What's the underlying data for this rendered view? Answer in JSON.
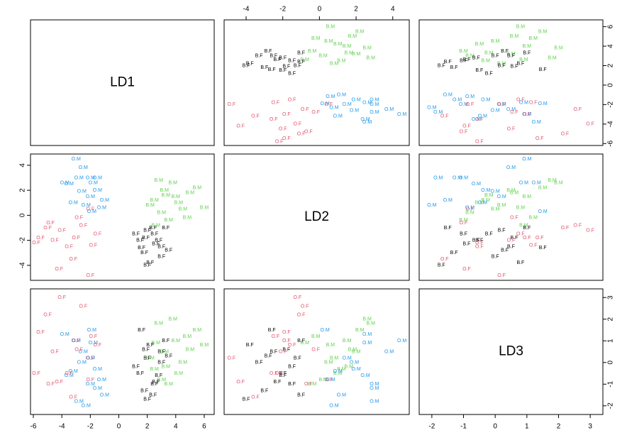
{
  "chart_data": {
    "type": "pairs",
    "axes": [
      {
        "name": "LD1",
        "lim": [
          -6.2,
          6.7
        ],
        "ticks": [
          -6,
          -4,
          -2,
          0,
          2,
          4,
          6
        ]
      },
      {
        "name": "LD2",
        "lim": [
          -5.2,
          4.9
        ],
        "ticks": [
          -4,
          -2,
          0,
          2,
          4
        ]
      },
      {
        "name": "LD3",
        "lim": [
          -2.4,
          3.4
        ],
        "ticks": [
          -2,
          -1,
          0,
          1,
          2,
          3
        ]
      }
    ],
    "series": [
      {
        "name": "B.M",
        "color": "#61D04F",
        "LD1": [
          5.5,
          4.0,
          3.2,
          2.5,
          6.0,
          4.5,
          3.0,
          2.8,
          3.8,
          4.2,
          2.2,
          3.5,
          5.0,
          2.6,
          4.8,
          3.3
        ],
        "LD2": [
          2.2,
          1.5,
          2.0,
          1.2,
          0.6,
          0.5,
          0.2,
          2.8,
          2.6,
          1.0,
          0.8,
          -0.4,
          1.8,
          -0.8,
          -0.2,
          1.6
        ],
        "LD3": [
          1.5,
          1.0,
          0.5,
          -0.3,
          0.8,
          0.0,
          -0.8,
          1.8,
          2.0,
          -0.5,
          0.2,
          -1.0,
          0.6,
          0.9,
          1.2,
          -0.2
        ]
      },
      {
        "name": "B.F",
        "color": "#000000",
        "LD1": [
          2.0,
          1.5,
          2.5,
          3.0,
          1.8,
          2.2,
          3.3,
          1.2,
          2.8,
          2.0,
          3.5,
          1.6,
          2.4,
          3.0,
          1.9,
          2.6
        ],
        "LD2": [
          -1.2,
          -2.0,
          -1.5,
          -2.5,
          -3.0,
          -3.8,
          -1.0,
          -1.5,
          -2.0,
          -4.0,
          -2.8,
          -2.6,
          -1.0,
          -3.3,
          -1.8,
          -2.3
        ],
        "LD3": [
          0.2,
          -0.5,
          -1.0,
          0.5,
          -1.3,
          0.8,
          1.0,
          -0.2,
          -0.6,
          -1.7,
          0.3,
          1.5,
          -1.5,
          0.0,
          0.6,
          -0.9
        ]
      },
      {
        "name": "O.M",
        "color": "#2297E6",
        "LD1": [
          -3.0,
          -2.5,
          -2.0,
          -1.5,
          -3.5,
          -2.0,
          -1.0,
          -1.8,
          -2.8,
          -1.2,
          -3.8,
          -2.3,
          -1.5,
          -2.6,
          -1.9,
          -3.2
        ],
        "LD2": [
          4.5,
          3.8,
          3.0,
          2.0,
          2.5,
          1.5,
          1.2,
          2.6,
          3.0,
          0.6,
          2.6,
          0.8,
          3.0,
          1.9,
          0.3,
          1.0
        ],
        "LD3": [
          1.0,
          0.5,
          -1.0,
          -0.3,
          -0.6,
          0.2,
          -1.5,
          0.9,
          -1.8,
          -0.8,
          1.3,
          -2.0,
          -1.2,
          0.0,
          1.5,
          -0.4
        ]
      },
      {
        "name": "O.F",
        "color": "#DF536B",
        "LD1": [
          -5.5,
          -5.0,
          -4.5,
          -4.0,
          -3.5,
          -3.0,
          -2.5,
          -2.0,
          -1.5,
          -5.8,
          -4.2,
          -2.0,
          -1.8,
          -3.2,
          -2.8,
          -4.8
        ],
        "LD2": [
          -1.8,
          -1.0,
          -2.0,
          -1.2,
          -2.5,
          -1.8,
          -0.8,
          0.5,
          -1.5,
          -2.2,
          -4.3,
          -4.8,
          -2.4,
          -3.5,
          -0.2,
          -0.6
        ],
        "LD3": [
          1.4,
          2.2,
          0.5,
          3.0,
          -0.5,
          1.0,
          2.6,
          -0.8,
          0.8,
          -0.5,
          -0.9,
          0.2,
          1.2,
          -1.6,
          0.6,
          -1.0
        ]
      }
    ]
  }
}
